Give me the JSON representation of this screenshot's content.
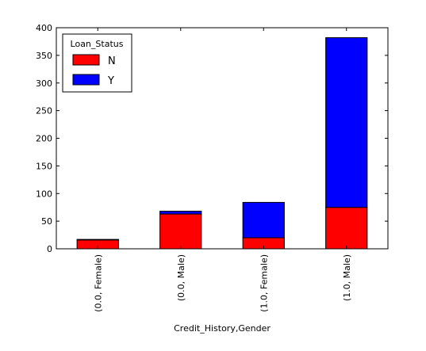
{
  "chart_data": {
    "type": "bar",
    "stacked": true,
    "categories": [
      "(0.0, Female)",
      "(0.0, Male)",
      "(1.0, Female)",
      "(1.0, Male)"
    ],
    "series": [
      {
        "name": "N",
        "color": "#ff0000",
        "values": [
          16,
          63,
          20,
          75
        ]
      },
      {
        "name": "Y",
        "color": "#0000ff",
        "values": [
          1,
          5,
          64,
          307
        ]
      }
    ],
    "xlabel": "Credit_History,Gender",
    "ylabel": "",
    "ylim": [
      0,
      400
    ],
    "yticks": [
      0,
      50,
      100,
      150,
      200,
      250,
      300,
      350,
      400
    ],
    "legend": {
      "title": "Loan_Status",
      "placement": "top-left"
    },
    "grid": false
  }
}
